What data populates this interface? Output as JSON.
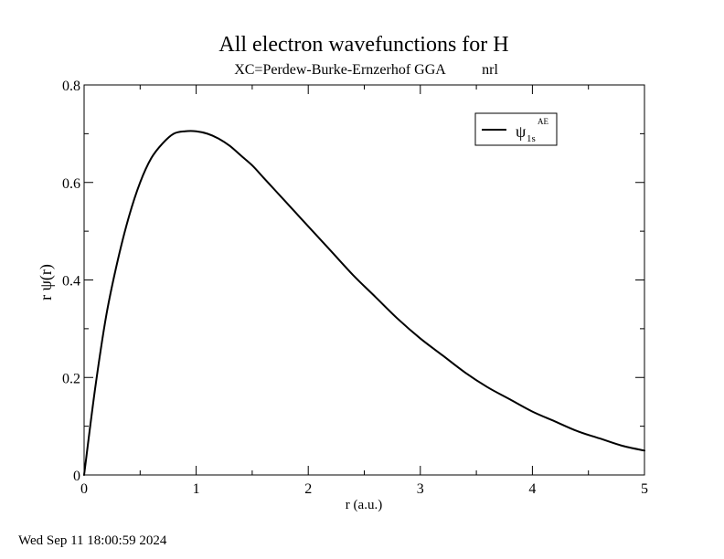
{
  "chart_data": {
    "type": "line",
    "title": "All electron wavefunctions for H",
    "subtitle_left": "XC=Perdew-Burke-Ernzerhof GGA",
    "subtitle_right": "nrl",
    "xlabel": "r (a.u.)",
    "ylabel": "r ψ(r)",
    "xlim": [
      0,
      5
    ],
    "ylim": [
      0,
      0.8
    ],
    "x_ticks": [
      0,
      1,
      2,
      3,
      4,
      5
    ],
    "x_tick_labels": [
      "0",
      "1",
      "2",
      "3",
      "4",
      "5"
    ],
    "x_minor_ticks": [
      0.5,
      1.5,
      2.5,
      3.5,
      4.5
    ],
    "y_ticks": [
      0,
      0.2,
      0.4,
      0.6,
      0.8
    ],
    "y_tick_labels": [
      "0",
      "0.2",
      "0.4",
      "0.6",
      "0.8"
    ],
    "y_minor_ticks": [
      0.1,
      0.3,
      0.5,
      0.7
    ],
    "grid": false,
    "legend_position": "top-right",
    "legend": {
      "symbol": "ψ",
      "subscript": "1s",
      "superscript": "AE"
    },
    "series": [
      {
        "color": "#000000",
        "x": [
          0,
          0.1,
          0.2,
          0.3,
          0.4,
          0.5,
          0.6,
          0.7,
          0.8,
          0.9,
          1.0,
          1.1,
          1.2,
          1.3,
          1.4,
          1.5,
          1.6,
          1.7,
          1.8,
          1.9,
          2.0,
          2.2,
          2.4,
          2.6,
          2.8,
          3.0,
          3.2,
          3.4,
          3.6,
          3.8,
          4.0,
          4.2,
          4.4,
          4.6,
          4.8,
          5.0
        ],
        "y": [
          0,
          0.18,
          0.33,
          0.44,
          0.53,
          0.6,
          0.65,
          0.68,
          0.7,
          0.705,
          0.705,
          0.7,
          0.69,
          0.675,
          0.655,
          0.635,
          0.61,
          0.585,
          0.56,
          0.535,
          0.51,
          0.46,
          0.41,
          0.365,
          0.32,
          0.28,
          0.245,
          0.21,
          0.18,
          0.155,
          0.13,
          0.11,
          0.09,
          0.075,
          0.06,
          0.05
        ]
      }
    ]
  },
  "footer": {
    "timestamp": "Wed Sep 11 18:00:59 2024"
  }
}
